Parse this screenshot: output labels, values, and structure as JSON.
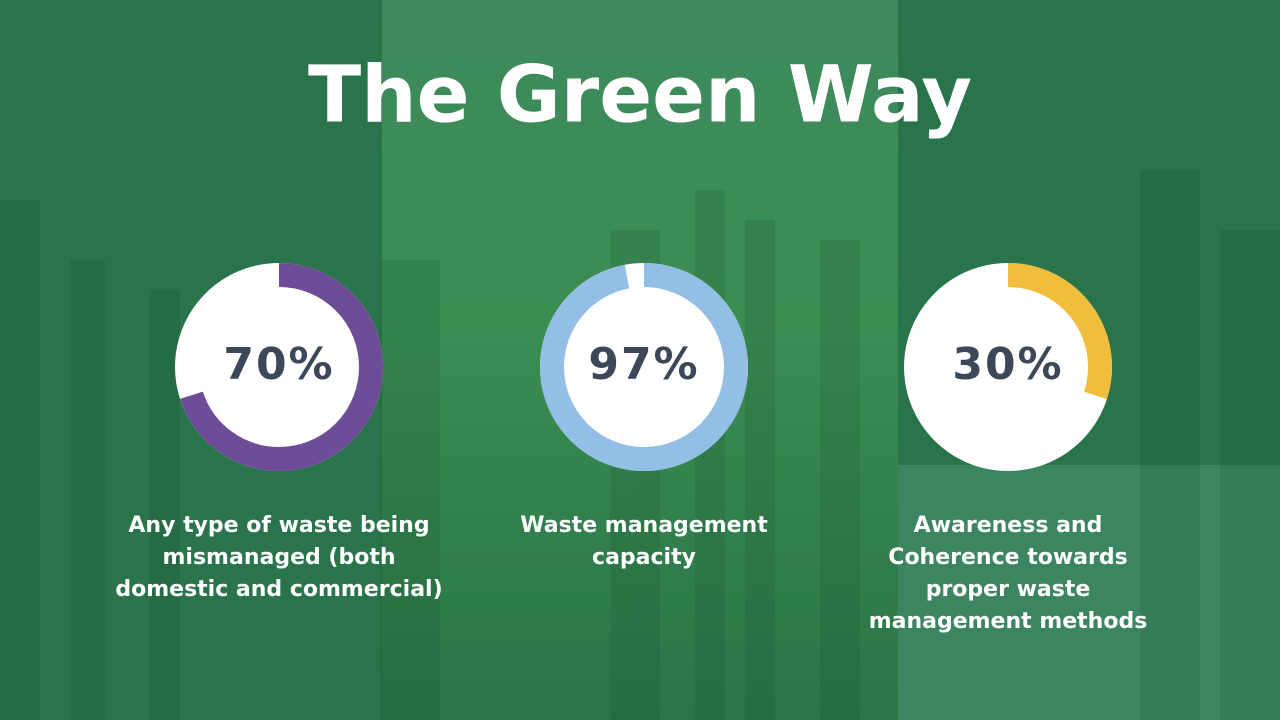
{
  "title": "The Green Way",
  "chart_data": [
    {
      "type": "donut",
      "title": "Any type of waste being mismanaged (both domestic and commercial)",
      "values": [
        70
      ],
      "value_labels": [
        "70%"
      ],
      "color": "#6d4c98"
    },
    {
      "type": "donut",
      "title": "Waste management capacity",
      "values": [
        97
      ],
      "value_labels": [
        "97%"
      ],
      "color": "#93bfe6"
    },
    {
      "type": "donut",
      "title": "Awareness and Coherence towards proper waste management methods",
      "values": [
        30
      ],
      "value_labels": [
        "30%"
      ],
      "color": "#f0bd3c"
    }
  ]
}
